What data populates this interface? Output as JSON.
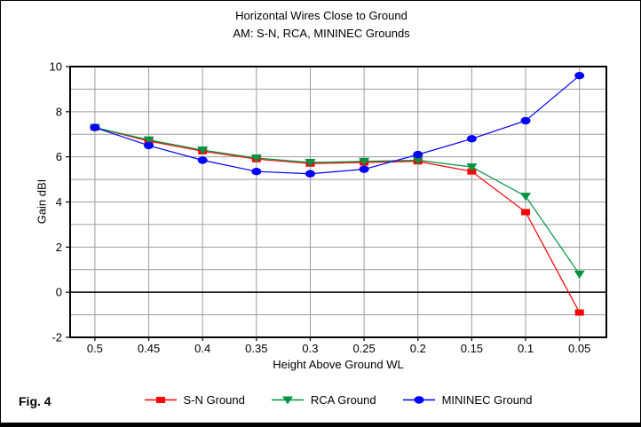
{
  "figure": {
    "fig_label": "Fig. 4"
  },
  "chart_data": {
    "type": "line",
    "title": "Horizontal Wires Close to Ground",
    "subtitle": "AM: S-N, RCA, MININEC Grounds",
    "xlabel": "Height Above Ground WL",
    "ylabel": "Gain dBI",
    "grid": true,
    "legend_position": "bottom",
    "x": [
      0.5,
      0.45,
      0.4,
      0.35,
      0.3,
      0.25,
      0.2,
      0.15,
      0.1,
      0.05
    ],
    "x_axis": {
      "reversed": true,
      "left_value": 0.523,
      "right_value": 0.025,
      "tick_values": [
        0.5,
        0.45,
        0.4,
        0.35,
        0.3,
        0.25,
        0.2,
        0.15,
        0.1,
        0.05
      ],
      "tick_labels": [
        "0.5",
        "0.45",
        "0.4",
        "0.35",
        "0.3",
        "0.25",
        "0.2",
        "0.15",
        "0.1",
        "0.05"
      ]
    },
    "y_axis": {
      "min": -2,
      "max": 10,
      "grid_step": 1,
      "label_tick_values": [
        10,
        8,
        6,
        4,
        2,
        0,
        -2
      ],
      "label_tick_labels": [
        "10",
        "8",
        "6",
        "4",
        "2",
        "0",
        "-2"
      ],
      "zero_line": 0
    },
    "series": [
      {
        "name": "S-N Ground",
        "color": "#ff0000",
        "marker": "square",
        "values": [
          7.3,
          6.7,
          6.25,
          5.9,
          5.7,
          5.75,
          5.8,
          5.35,
          3.55,
          -0.9
        ]
      },
      {
        "name": "RCA Ground",
        "color": "#009440",
        "marker": "triangle-down",
        "values": [
          7.3,
          6.75,
          6.3,
          5.95,
          5.75,
          5.8,
          5.85,
          5.55,
          4.25,
          0.8
        ]
      },
      {
        "name": "MININEC Ground",
        "color": "#0000ff",
        "marker": "circle",
        "values": [
          7.3,
          6.5,
          5.85,
          5.35,
          5.25,
          5.45,
          6.1,
          6.8,
          7.6,
          9.6
        ]
      }
    ],
    "colors": {
      "grid": "#9c9c9c",
      "axis_border": "#000000",
      "zero_line": "#000000",
      "background": "#ffffff",
      "text": "#000000"
    }
  }
}
